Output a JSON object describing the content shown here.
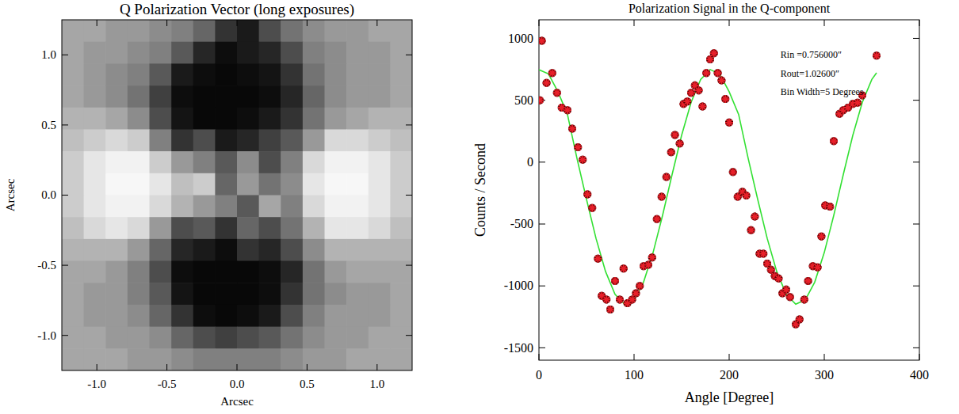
{
  "chart_data": [
    {
      "type": "heatmap",
      "title": "Q Polarization Vector (long exposures)",
      "x_label": "Arcsec",
      "y_label": "Arcsec",
      "xlim": [
        -1.25,
        1.25
      ],
      "ylim": [
        -1.25,
        1.25
      ],
      "xticks": [
        {
          "value": -1,
          "label": "-1.0"
        },
        -0.5,
        {
          "value": 0,
          "label": "0.0"
        },
        0.5,
        {
          "value": 1,
          "label": "1.0"
        }
      ],
      "yticks": [
        {
          "value": -1,
          "label": "-1.0"
        },
        -0.5,
        {
          "value": 0,
          "label": "0.0"
        },
        0.5,
        {
          "value": 1,
          "label": "1.0"
        }
      ],
      "cells": [
        [
          0.65,
          0.65,
          0.6,
          0.6,
          0.55,
          0.5,
          0.4,
          0.2,
          0.1,
          0.3,
          0.45,
          0.55,
          0.6,
          0.6,
          0.65,
          0.65
        ],
        [
          0.65,
          0.6,
          0.6,
          0.55,
          0.5,
          0.35,
          0.15,
          0.05,
          0.1,
          0.15,
          0.3,
          0.5,
          0.55,
          0.6,
          0.6,
          0.65
        ],
        [
          0.65,
          0.6,
          0.55,
          0.5,
          0.35,
          0.1,
          0.05,
          0.03,
          0.05,
          0.08,
          0.2,
          0.45,
          0.55,
          0.6,
          0.6,
          0.65
        ],
        [
          0.65,
          0.6,
          0.55,
          0.45,
          0.25,
          0.05,
          0.03,
          0.03,
          0.03,
          0.05,
          0.15,
          0.4,
          0.55,
          0.6,
          0.6,
          0.65
        ],
        [
          0.7,
          0.7,
          0.65,
          0.55,
          0.3,
          0.08,
          0.03,
          0.03,
          0.05,
          0.1,
          0.2,
          0.45,
          0.6,
          0.65,
          0.7,
          0.7
        ],
        [
          0.75,
          0.8,
          0.85,
          0.8,
          0.5,
          0.2,
          0.3,
          0.1,
          0.15,
          0.25,
          0.35,
          0.6,
          0.85,
          0.85,
          0.8,
          0.75
        ],
        [
          0.8,
          0.9,
          0.95,
          0.95,
          0.8,
          0.6,
          0.5,
          0.35,
          0.55,
          0.3,
          0.5,
          0.85,
          0.95,
          0.95,
          0.9,
          0.8
        ],
        [
          0.8,
          0.9,
          0.97,
          0.97,
          0.9,
          0.75,
          0.8,
          0.4,
          0.6,
          0.45,
          0.55,
          0.9,
          0.97,
          0.97,
          0.9,
          0.8
        ],
        [
          0.8,
          0.9,
          0.95,
          0.95,
          0.85,
          0.7,
          0.6,
          0.5,
          0.35,
          0.65,
          0.5,
          0.85,
          0.95,
          0.95,
          0.9,
          0.8
        ],
        [
          0.75,
          0.85,
          0.9,
          0.85,
          0.6,
          0.3,
          0.35,
          0.2,
          0.4,
          0.3,
          0.45,
          0.7,
          0.9,
          0.9,
          0.85,
          0.75
        ],
        [
          0.7,
          0.7,
          0.7,
          0.6,
          0.4,
          0.15,
          0.1,
          0.05,
          0.2,
          0.15,
          0.3,
          0.55,
          0.7,
          0.7,
          0.7,
          0.7
        ],
        [
          0.65,
          0.65,
          0.6,
          0.5,
          0.3,
          0.05,
          0.03,
          0.03,
          0.03,
          0.05,
          0.15,
          0.45,
          0.6,
          0.65,
          0.65,
          0.65
        ],
        [
          0.65,
          0.6,
          0.6,
          0.5,
          0.35,
          0.08,
          0.03,
          0.03,
          0.03,
          0.05,
          0.2,
          0.45,
          0.55,
          0.6,
          0.6,
          0.65
        ],
        [
          0.65,
          0.6,
          0.6,
          0.55,
          0.4,
          0.2,
          0.05,
          0.03,
          0.05,
          0.1,
          0.3,
          0.5,
          0.6,
          0.6,
          0.6,
          0.65
        ],
        [
          0.65,
          0.65,
          0.6,
          0.6,
          0.55,
          0.4,
          0.3,
          0.25,
          0.3,
          0.35,
          0.45,
          0.55,
          0.6,
          0.6,
          0.65,
          0.65
        ],
        [
          0.65,
          0.65,
          0.65,
          0.6,
          0.6,
          0.55,
          0.5,
          0.5,
          0.5,
          0.5,
          0.55,
          0.6,
          0.6,
          0.65,
          0.65,
          0.65
        ]
      ]
    },
    {
      "type": "scatter",
      "title": "Polarization Signal in the Q-component",
      "x_label": "Angle [Degree]",
      "y_label": "Counts / Second",
      "xlim": [
        0,
        400
      ],
      "ylim": [
        -1600,
        1150
      ],
      "xticks": [
        0,
        100,
        200,
        300,
        400
      ],
      "yticks": [
        -1500,
        -1000,
        -500,
        0,
        500,
        1000
      ],
      "annotations": [
        "Rin =0.756000″",
        "Rout=1.02600″",
        "Bin Width=5 Degrees"
      ],
      "series": [
        {
          "type": "scatter",
          "color": "#e8202a",
          "marker": "asterisk",
          "x": [
            1,
            3,
            8,
            14,
            19,
            24,
            30,
            35,
            41,
            46,
            51,
            56,
            62,
            66,
            71,
            75,
            80,
            85,
            89,
            93,
            98,
            102,
            106,
            110,
            115,
            119,
            124,
            129,
            134,
            139,
            143,
            148,
            152,
            156,
            160,
            164,
            168,
            172,
            176,
            180,
            184,
            188,
            192,
            196,
            200,
            204,
            209,
            214,
            218,
            223,
            227,
            232,
            236,
            240,
            244,
            248,
            252,
            256,
            260,
            264,
            270,
            274,
            279,
            283,
            288,
            293,
            297,
            301,
            306,
            310,
            316,
            320,
            325,
            330,
            335,
            340,
            355
          ],
          "values": [
            500,
            980,
            640,
            720,
            560,
            440,
            420,
            270,
            120,
            20,
            -260,
            -370,
            -780,
            -1080,
            -1110,
            -1190,
            -960,
            -1110,
            -860,
            -1140,
            -1110,
            -1060,
            -1000,
            -840,
            -830,
            -770,
            -460,
            -280,
            -120,
            80,
            220,
            150,
            470,
            490,
            560,
            620,
            580,
            450,
            720,
            830,
            880,
            720,
            660,
            510,
            320,
            -80,
            -280,
            -240,
            -270,
            -550,
            -440,
            -740,
            -740,
            -820,
            -870,
            -920,
            -940,
            -1060,
            -1030,
            -1090,
            -1310,
            -1270,
            -1110,
            -960,
            -840,
            -850,
            -600,
            -350,
            -360,
            170,
            390,
            420,
            440,
            470,
            480,
            540,
            860
          ]
        },
        {
          "type": "line",
          "color": "#33e033",
          "line_style": "solid",
          "x": [
            0,
            10,
            20,
            30,
            40,
            50,
            60,
            70,
            80,
            90,
            100,
            110,
            120,
            130,
            140,
            150,
            160,
            170,
            180,
            190,
            200,
            210,
            220,
            230,
            240,
            250,
            260,
            270,
            280,
            290,
            300,
            310,
            320,
            330,
            340,
            350,
            355
          ],
          "values": [
            747,
            713,
            569,
            385,
            30,
            -300,
            -616,
            -883,
            -1068,
            -1148,
            -1113,
            -969,
            -731,
            -430,
            -100,
            216,
            483,
            668,
            748,
            713,
            569,
            385,
            30,
            -300,
            -616,
            -883,
            -1068,
            -1148,
            -1113,
            -969,
            -731,
            -430,
            -100,
            216,
            483,
            668,
            722
          ]
        }
      ]
    }
  ]
}
